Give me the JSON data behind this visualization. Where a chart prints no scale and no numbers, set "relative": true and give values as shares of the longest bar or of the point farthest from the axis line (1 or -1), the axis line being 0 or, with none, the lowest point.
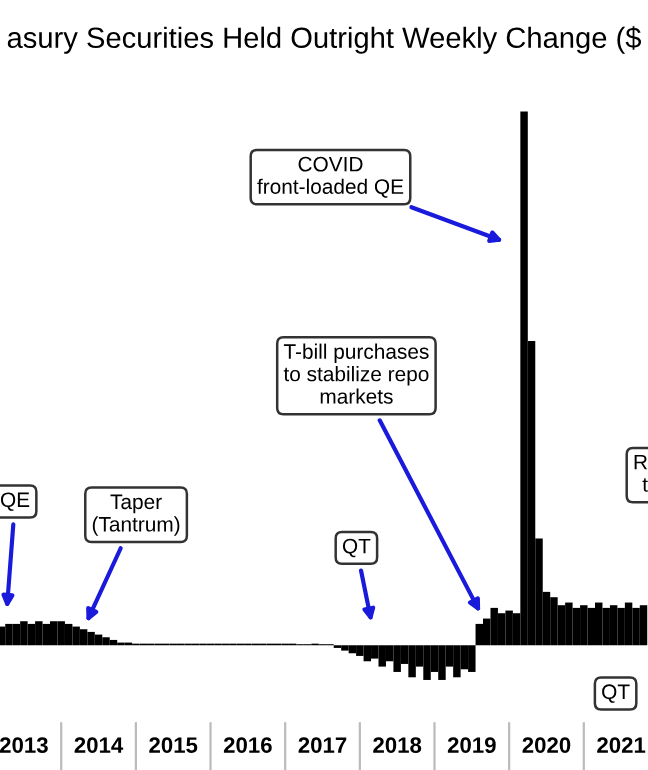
{
  "chart_data": {
    "type": "bar",
    "relative": true,
    "title": "asury Securities Held Outright Weekly Change ($",
    "xlim": [
      2013.18,
      2021.86
    ],
    "xticks": [
      {
        "value": 2013.5,
        "label": "2013"
      },
      {
        "value": 2014.5,
        "label": "2014"
      },
      {
        "value": 2015.5,
        "label": "2015"
      },
      {
        "value": 2016.5,
        "label": "2016"
      },
      {
        "value": 2017.5,
        "label": "2017"
      },
      {
        "value": 2018.5,
        "label": "2018"
      },
      {
        "value": 2019.5,
        "label": "2019"
      },
      {
        "value": 2020.5,
        "label": "2020"
      },
      {
        "value": 2021.5,
        "label": "2021"
      }
    ],
    "tick_labels": "x",
    "series": [
      {
        "color": "#000000",
        "x": [
          2013.2,
          2013.3,
          2013.4,
          2013.5,
          2013.6,
          2013.7,
          2013.8,
          2013.9,
          2014.0,
          2014.1,
          2014.2,
          2014.3,
          2014.4,
          2014.5,
          2014.6,
          2014.7,
          2014.8,
          2014.9,
          2015.0,
          2015.1,
          2015.2,
          2015.3,
          2015.4,
          2015.5,
          2015.6,
          2015.7,
          2015.8,
          2015.9,
          2016.0,
          2016.1,
          2016.2,
          2016.3,
          2016.4,
          2016.5,
          2016.6,
          2016.7,
          2016.8,
          2016.9,
          2017.0,
          2017.1,
          2017.2,
          2017.3,
          2017.4,
          2017.5,
          2017.6,
          2017.7,
          2017.8,
          2017.9,
          2018.0,
          2018.1,
          2018.2,
          2018.3,
          2018.4,
          2018.5,
          2018.6,
          2018.7,
          2018.8,
          2018.9,
          2019.0,
          2019.1,
          2019.2,
          2019.3,
          2019.4,
          2019.5,
          2019.6,
          2019.7,
          2019.8,
          2019.9,
          2020.0,
          2020.1,
          2020.2,
          2020.3,
          2020.4,
          2020.5,
          2020.6,
          2020.7,
          2020.8,
          2020.9,
          2021.0,
          2021.1,
          2021.2,
          2021.3,
          2021.4,
          2021.5,
          2021.6,
          2021.7,
          2021.8
        ],
        "values": [
          0.035,
          0.04,
          0.04,
          0.045,
          0.04,
          0.045,
          0.04,
          0.045,
          0.045,
          0.04,
          0.035,
          0.03,
          0.025,
          0.02,
          0.015,
          0.01,
          0.005,
          0.005,
          0.003,
          0.003,
          0.003,
          0.003,
          0.003,
          0.003,
          0.003,
          0.003,
          0.003,
          0.003,
          0.003,
          0.003,
          0.003,
          0.003,
          0.003,
          0.003,
          0.003,
          0.003,
          0.003,
          0.003,
          0.003,
          0.003,
          0.002,
          0.002,
          0.003,
          0.002,
          0.002,
          -0.005,
          -0.01,
          -0.015,
          -0.02,
          -0.03,
          -0.025,
          -0.04,
          -0.03,
          -0.05,
          -0.035,
          -0.06,
          -0.04,
          -0.065,
          -0.05,
          -0.065,
          -0.04,
          -0.06,
          -0.045,
          -0.05,
          0.04,
          0.05,
          0.07,
          0.06,
          0.065,
          0.06,
          1.0,
          0.57,
          0.2,
          0.1,
          0.09,
          0.075,
          0.08,
          0.07,
          0.075,
          0.07,
          0.08,
          0.07,
          0.075,
          0.07,
          0.08,
          0.07,
          0.075
        ]
      }
    ],
    "annotations": [
      "QE",
      "Taper\n(Tantrum)",
      "T-bill purchases\nto stabilize repo\nmarkets",
      "COVID\nfront-loaded QE",
      "QT",
      "QT",
      "R\nt"
    ]
  }
}
